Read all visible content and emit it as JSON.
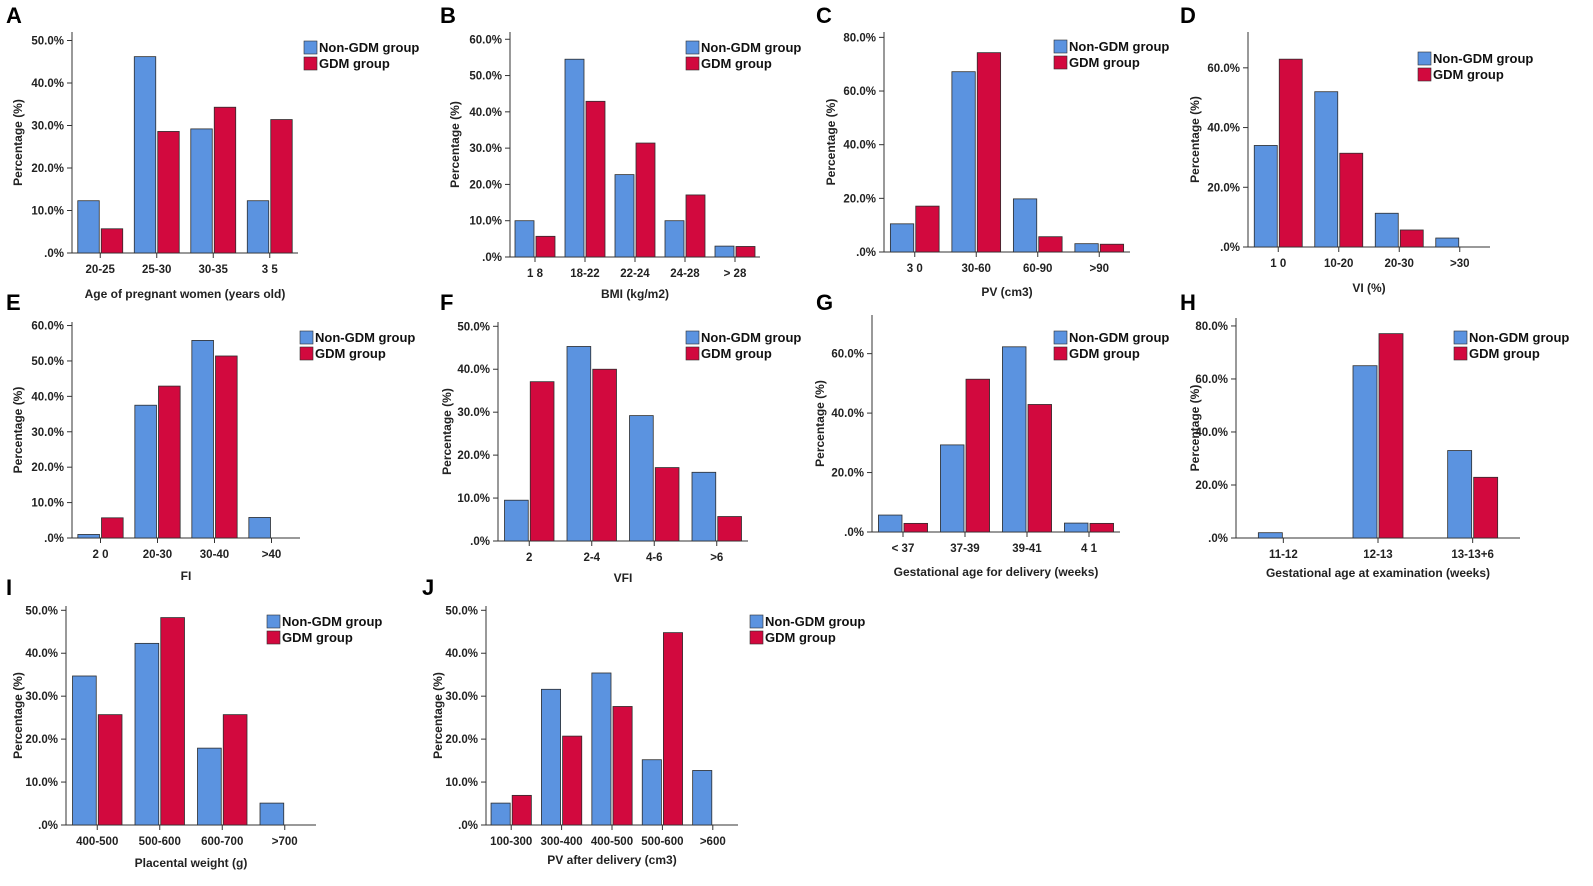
{
  "colors": {
    "non_gdm": "#5b93e0",
    "gdm": "#d2093e",
    "bar_edge": "#2d2d2d"
  },
  "legend": {
    "series": [
      "Non-GDM group",
      "GDM group"
    ]
  },
  "chart_data": [
    {
      "letter": "A",
      "type": "bar",
      "xlabel": "Age of pregnant women (years old)",
      "ylabel": "Percentage (%)",
      "ylim": [
        0,
        52
      ],
      "yticks": [
        0,
        10,
        20,
        30,
        40,
        50
      ],
      "tick_labels": [
        ".0%",
        "10.0%",
        "20.0%",
        "30.0%",
        "40.0%",
        "50.0%"
      ],
      "categories": [
        "20-25",
        "25-30",
        "30-35",
        "3 5"
      ],
      "series": [
        {
          "name": "Non-GDM group",
          "values": [
            12.3,
            46.2,
            29.2,
            12.3
          ]
        },
        {
          "name": "GDM group",
          "values": [
            5.7,
            28.6,
            34.3,
            31.4
          ]
        }
      ]
    },
    {
      "letter": "B",
      "type": "bar",
      "xlabel": "BMI (kg/m2)",
      "ylabel": "Percentage (%)",
      "ylim": [
        0,
        62
      ],
      "yticks": [
        0,
        10,
        20,
        30,
        40,
        50,
        60
      ],
      "tick_labels": [
        ".0%",
        "10.0%",
        "20.0%",
        "30.0%",
        "40.0%",
        "50.0%",
        "60.0%"
      ],
      "categories": [
        "1 8",
        "18-22",
        "22-24",
        "24-28",
        "> 28"
      ],
      "series": [
        {
          "name": "Non-GDM group",
          "values": [
            10.0,
            54.5,
            22.7,
            10.0,
            3.0
          ]
        },
        {
          "name": "GDM group",
          "values": [
            5.7,
            42.9,
            31.4,
            17.1,
            2.9
          ]
        }
      ]
    },
    {
      "letter": "C",
      "type": "bar",
      "xlabel": "PV (cm3)",
      "ylabel": "Percentage (%)",
      "ylim": [
        0,
        82
      ],
      "yticks": [
        0,
        20,
        40,
        60,
        80
      ],
      "tick_labels": [
        ".0%",
        "20.0%",
        "40.0%",
        "60.0%",
        "80.0%"
      ],
      "categories": [
        "3 0",
        "30-60",
        "60-90",
        ">90"
      ],
      "series": [
        {
          "name": "Non-GDM group",
          "values": [
            10.5,
            67.2,
            19.8,
            3.1
          ]
        },
        {
          "name": "GDM group",
          "values": [
            17.1,
            74.3,
            5.7,
            2.9
          ]
        }
      ]
    },
    {
      "letter": "D",
      "type": "bar",
      "xlabel": "VI (%)",
      "ylabel": "Percentage (%)",
      "ylim": [
        0,
        72
      ],
      "yticks": [
        0,
        20,
        40,
        60
      ],
      "tick_labels": [
        ".0%",
        "20.0%",
        "40.0%",
        "60.0%"
      ],
      "categories": [
        "1 0",
        "10-20",
        "20-30",
        ">30"
      ],
      "series": [
        {
          "name": "Non-GDM group",
          "values": [
            34.0,
            52.0,
            11.3,
            3.0
          ]
        },
        {
          "name": "GDM group",
          "values": [
            62.9,
            31.4,
            5.7,
            0
          ]
        }
      ]
    },
    {
      "letter": "E",
      "type": "bar",
      "xlabel": "FI",
      "ylabel": "Percentage (%)",
      "ylim": [
        0,
        61
      ],
      "yticks": [
        0,
        10,
        20,
        30,
        40,
        50,
        60
      ],
      "tick_labels": [
        ".0%",
        "10.0%",
        "20.0%",
        "30.0%",
        "40.0%",
        "50.0%",
        "60.0%"
      ],
      "categories": [
        "2 0",
        "20-30",
        "30-40",
        ">40"
      ],
      "series": [
        {
          "name": "Non-GDM group",
          "values": [
            1.0,
            37.5,
            55.8,
            5.8
          ]
        },
        {
          "name": "GDM group",
          "values": [
            5.7,
            42.9,
            51.4,
            0
          ]
        }
      ]
    },
    {
      "letter": "F",
      "type": "bar",
      "xlabel": "VFI",
      "ylabel": "Percentage (%)",
      "ylim": [
        0,
        51
      ],
      "yticks": [
        0,
        10,
        20,
        30,
        40,
        50
      ],
      "tick_labels": [
        ".0%",
        "10.0%",
        "20.0%",
        "30.0%",
        "40.0%",
        "50.0%"
      ],
      "categories": [
        "2",
        "2-4",
        "4-6",
        ">6"
      ],
      "series": [
        {
          "name": "Non-GDM group",
          "values": [
            9.5,
            45.3,
            29.2,
            16.0
          ]
        },
        {
          "name": "GDM group",
          "values": [
            37.1,
            40.0,
            17.1,
            5.7
          ]
        }
      ]
    },
    {
      "letter": "G",
      "type": "bar",
      "xlabel": "Gestational age for delivery (weeks)",
      "ylabel": "Percentage (%)",
      "ylim": [
        0,
        73
      ],
      "yticks": [
        0,
        20,
        40,
        60
      ],
      "tick_labels": [
        ".0%",
        "20.0%",
        "40.0%",
        "60.0%"
      ],
      "categories": [
        "< 37",
        "37-39",
        "39-41",
        "4 1"
      ],
      "series": [
        {
          "name": "Non-GDM group",
          "values": [
            5.7,
            29.3,
            62.3,
            3.0
          ]
        },
        {
          "name": "GDM group",
          "values": [
            2.9,
            51.4,
            42.9,
            2.9
          ]
        }
      ]
    },
    {
      "letter": "H",
      "type": "bar",
      "xlabel": "Gestational age at examination (weeks)",
      "ylabel": "Percentage (%)",
      "ylim": [
        0,
        83
      ],
      "yticks": [
        0,
        20,
        40,
        60,
        80
      ],
      "tick_labels": [
        ".0%",
        "20.0%",
        "40.0%",
        "60.0%",
        "80.0%"
      ],
      "categories": [
        "11-12",
        "12-13",
        "13-13+6"
      ],
      "series": [
        {
          "name": "Non-GDM group",
          "values": [
            2.0,
            65.0,
            33.0
          ]
        },
        {
          "name": "GDM group",
          "values": [
            0,
            77.1,
            22.9
          ]
        }
      ]
    },
    {
      "letter": "I",
      "type": "bar",
      "xlabel": "Placental weight (g)",
      "ylabel": "Percentage (%)",
      "ylim": [
        0,
        51
      ],
      "yticks": [
        0,
        10,
        20,
        30,
        40,
        50
      ],
      "tick_labels": [
        ".0%",
        "10.0%",
        "20.0%",
        "30.0%",
        "40.0%",
        "50.0%"
      ],
      "categories": [
        "400-500",
        "500-600",
        "600-700",
        ">700"
      ],
      "series": [
        {
          "name": "Non-GDM group",
          "values": [
            34.7,
            42.3,
            17.9,
            5.1
          ]
        },
        {
          "name": "GDM group",
          "values": [
            25.7,
            48.3,
            25.7,
            0
          ]
        }
      ]
    },
    {
      "letter": "J",
      "type": "bar",
      "xlabel": "PV after delivery (cm3)",
      "ylabel": "Percentage (%)",
      "ylim": [
        0,
        51
      ],
      "yticks": [
        0,
        10,
        20,
        30,
        40,
        50
      ],
      "tick_labels": [
        ".0%",
        "10.0%",
        "20.0%",
        "30.0%",
        "40.0%",
        "50.0%"
      ],
      "categories": [
        "100-300",
        "300-400",
        "400-500",
        "500-600",
        ">600"
      ],
      "series": [
        {
          "name": "Non-GDM group",
          "values": [
            5.1,
            31.6,
            35.4,
            15.2,
            12.7
          ]
        },
        {
          "name": "GDM group",
          "values": [
            6.9,
            20.7,
            27.6,
            44.8,
            0
          ]
        }
      ]
    }
  ]
}
